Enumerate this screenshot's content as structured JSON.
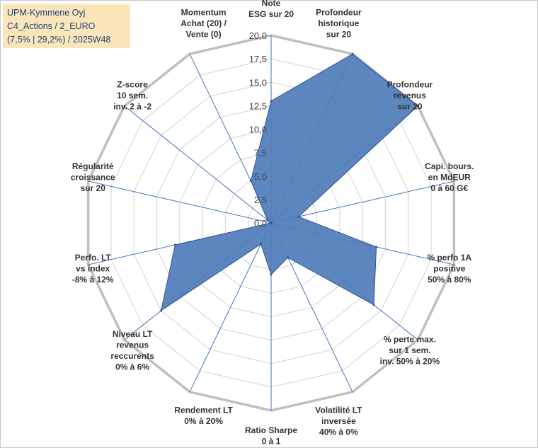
{
  "header": {
    "line1": "UPM-Kymmene Oyj",
    "line2": "C4_Actions / 2_EURO",
    "line3": "(7,5% | 29,2%) / 2025W48"
  },
  "colors": {
    "fill": "#4f7cba",
    "stroke": "#2f5597",
    "ring": "#d9d9d9",
    "outer": "#bfbfbf",
    "axis": "#4472c4"
  },
  "chart_data": {
    "type": "radar",
    "title": "UPM-Kymmene Oyj",
    "rmin": 0,
    "rmax": 20,
    "ticks": [
      "0,0",
      "2,5",
      "5,0",
      "7,5",
      "10,0",
      "12,5",
      "15,0",
      "17,5",
      "20,0"
    ],
    "axes": [
      {
        "label": [
          "Note",
          "ESG sur 20"
        ],
        "value": 13
      },
      {
        "label": [
          "Profondeur",
          "historique",
          "sur 20"
        ],
        "value": 20
      },
      {
        "label": [
          "Profondeur",
          "revenus",
          "sur 20"
        ],
        "value": 20
      },
      {
        "label": [
          "Capi. bours.",
          "en MdEUR",
          "0 à 60 G€"
        ],
        "value": 3
      },
      {
        "label": [
          "% perfo 1A",
          "positive",
          "50% à 80%"
        ],
        "value": 11.5
      },
      {
        "label": [
          "% perte max.",
          "sur 1 sem.",
          "inv. 50% à 20%"
        ],
        "value": 14
      },
      {
        "label": [
          "Volatilité LT",
          "inversée",
          "40% à 0%"
        ],
        "value": 4.1
      },
      {
        "label": [
          "Ratio Sharpe",
          "0 à 1"
        ],
        "value": 5.5
      },
      {
        "label": [
          "Rendement LT",
          "0% à 20%"
        ],
        "value": 2.5
      },
      {
        "label": [
          "Niveau LT",
          "revenus",
          "reccurents",
          "0% à 6%"
        ],
        "value": 15
      },
      {
        "label": [
          "Perfo. LT",
          "vs index",
          "-8% à 12%"
        ],
        "value": 10.5
      },
      {
        "label": [
          "Régularité",
          "croissance",
          "sur 20"
        ],
        "value": 0
      },
      {
        "label": [
          "Z-score",
          "10 sem.",
          "inv. 2 à -2"
        ],
        "value": 0.5
      },
      {
        "label": [
          "Momentum",
          "Achat (20) /",
          "Vente (0)"
        ],
        "value": 5
      }
    ]
  }
}
